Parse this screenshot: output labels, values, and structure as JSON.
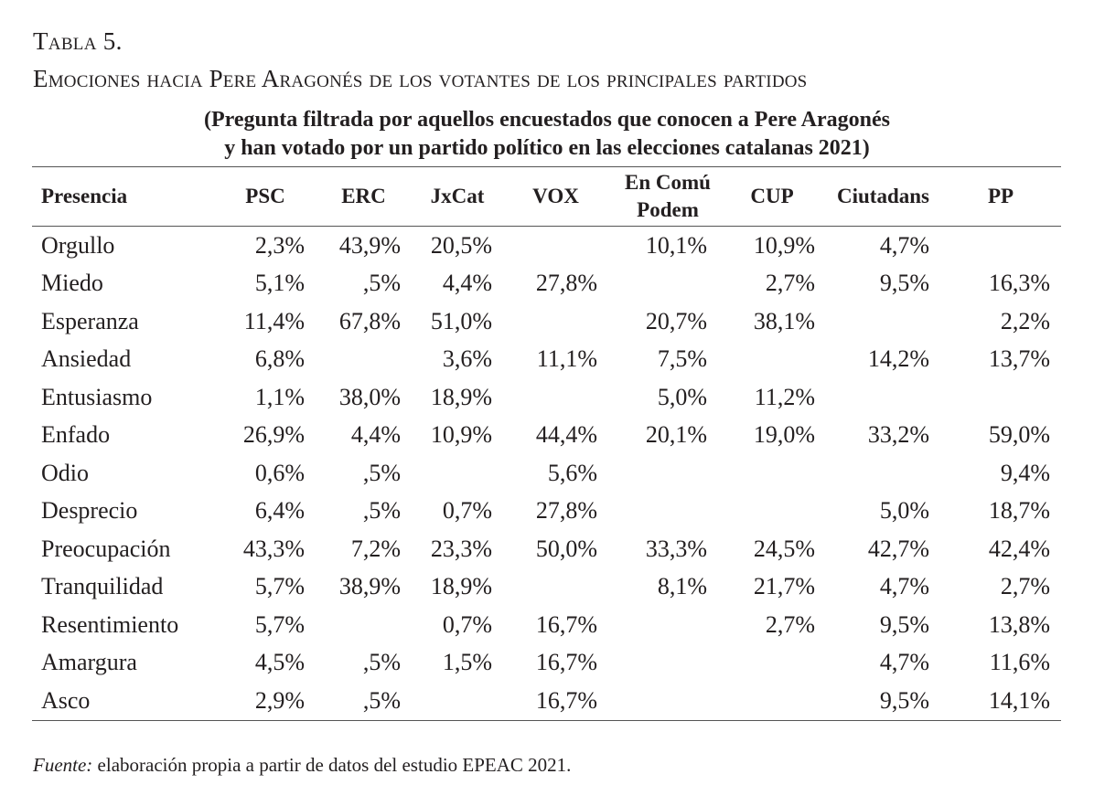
{
  "caption": {
    "number": "Tabla 5.",
    "title": "Emociones hacia Pere Aragonés de los votantes de los principales partidos",
    "subtitle_line1": "(Pregunta filtrada por aquellos encuestados que conocen a Pere Aragonés",
    "subtitle_line2": "y han votado por un partido político en las elecciones catalanas 2021)"
  },
  "table": {
    "headers": [
      "Presencia",
      "PSC",
      "ERC",
      "JxCat",
      "VOX",
      "En Comú Podem",
      "CUP",
      "Ciutadans",
      "PP"
    ],
    "rows": [
      [
        "Orgullo",
        "2,3%",
        "43,9%",
        "20,5%",
        "",
        "10,1%",
        "10,9%",
        "4,7%",
        ""
      ],
      [
        "Miedo",
        "5,1%",
        ",5%",
        "4,4%",
        "27,8%",
        "",
        "2,7%",
        "9,5%",
        "16,3%"
      ],
      [
        "Esperanza",
        "11,4%",
        "67,8%",
        "51,0%",
        "",
        "20,7%",
        "38,1%",
        "",
        "2,2%"
      ],
      [
        "Ansiedad",
        "6,8%",
        "",
        "3,6%",
        "11,1%",
        "7,5%",
        "",
        "14,2%",
        "13,7%"
      ],
      [
        "Entusiasmo",
        "1,1%",
        "38,0%",
        "18,9%",
        "",
        "5,0%",
        "11,2%",
        "",
        ""
      ],
      [
        "Enfado",
        "26,9%",
        "4,4%",
        "10,9%",
        "44,4%",
        "20,1%",
        "19,0%",
        "33,2%",
        "59,0%"
      ],
      [
        "Odio",
        "0,6%",
        ",5%",
        "",
        "5,6%",
        "",
        "",
        "",
        "9,4%"
      ],
      [
        "Desprecio",
        "6,4%",
        ",5%",
        "0,7%",
        "27,8%",
        "",
        "",
        "5,0%",
        "18,7%"
      ],
      [
        "Preocupación",
        "43,3%",
        "7,2%",
        "23,3%",
        "50,0%",
        "33,3%",
        "24,5%",
        "42,7%",
        "42,4%"
      ],
      [
        "Tranquilidad",
        "5,7%",
        "38,9%",
        "18,9%",
        "",
        "8,1%",
        "21,7%",
        "4,7%",
        "2,7%"
      ],
      [
        "Resentimiento",
        "5,7%",
        "",
        "0,7%",
        "16,7%",
        "",
        "2,7%",
        "9,5%",
        "13,8%"
      ],
      [
        "Amargura",
        "4,5%",
        ",5%",
        "1,5%",
        "16,7%",
        "",
        "",
        "4,7%",
        "11,6%"
      ],
      [
        "Asco",
        "2,9%",
        ",5%",
        "",
        "16,7%",
        "",
        "",
        "9,5%",
        "14,1%"
      ]
    ]
  },
  "footnote": {
    "label": "Fuente:",
    "text": " elaboración propia a partir de datos del estudio EPEAC 2021."
  }
}
